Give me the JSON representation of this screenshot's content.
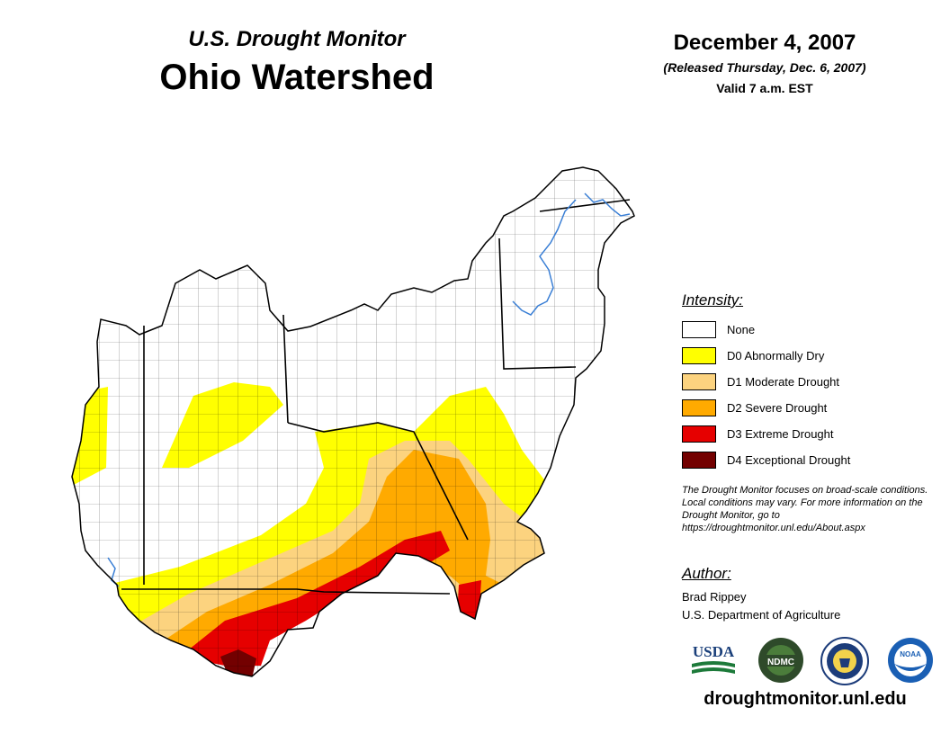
{
  "header": {
    "subtitle": "U.S. Drought Monitor",
    "title": "Ohio Watershed",
    "date": "December 4, 2007",
    "released": "(Released Thursday, Dec. 6, 2007)",
    "valid": "Valid 7 a.m. EST"
  },
  "legend": {
    "title": "Intensity:",
    "items": [
      {
        "label": "None",
        "color": "#ffffff"
      },
      {
        "label": "D0 Abnormally Dry",
        "color": "#ffff00"
      },
      {
        "label": "D1 Moderate Drought",
        "color": "#fcd37f"
      },
      {
        "label": "D2 Severe Drought",
        "color": "#ffaa00"
      },
      {
        "label": "D3 Extreme Drought",
        "color": "#e60000"
      },
      {
        "label": "D4 Exceptional Drought",
        "color": "#730000"
      }
    ]
  },
  "note": "The Drought Monitor focuses on broad-scale conditions. Local conditions may vary. For more information on the Drought Monitor, go to https://droughtmonitor.unl.edu/About.aspx",
  "author": {
    "heading": "Author:",
    "name": "Brad Rippey",
    "organization": "U.S. Department of Agriculture"
  },
  "logos": {
    "usda": "USDA",
    "ndmc": "NDMC",
    "noaa": "NOAA"
  },
  "url": "droughtmonitor.unl.edu"
}
